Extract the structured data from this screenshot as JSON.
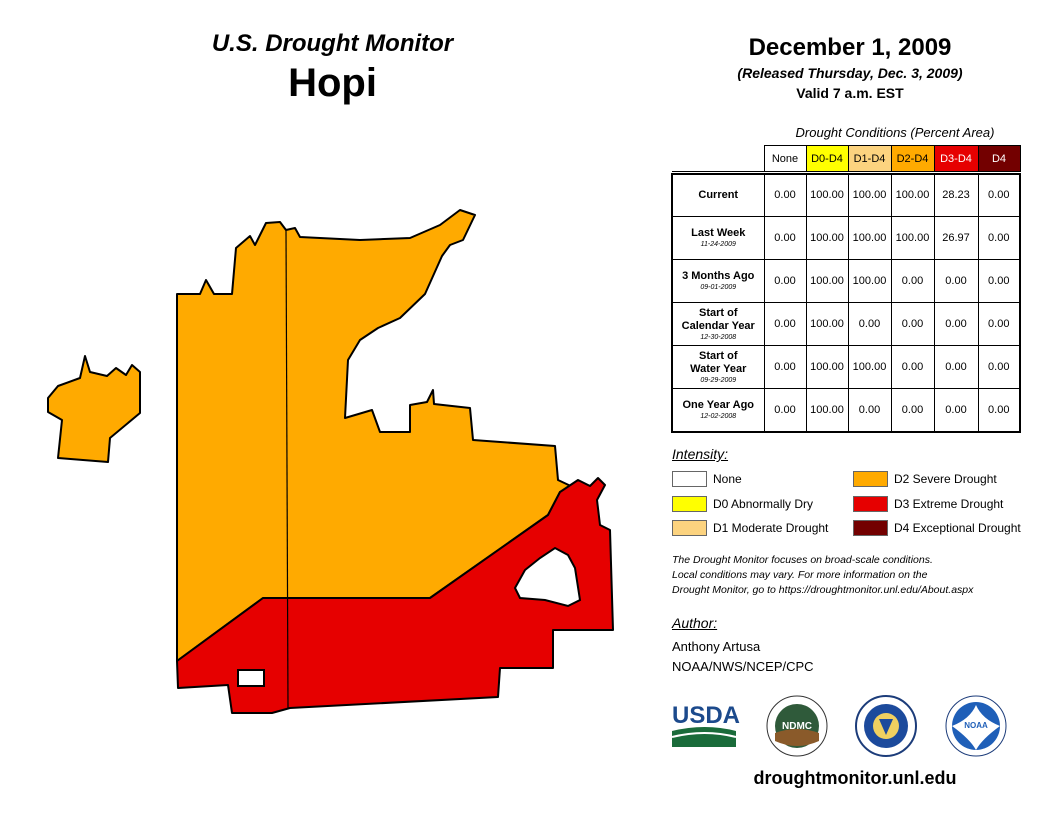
{
  "header": {
    "product": "U.S. Drought Monitor",
    "region": "Hopi",
    "date": "December 1, 2009",
    "released": "(Released Thursday, Dec. 3, 2009)",
    "valid": "Valid 7 a.m. EST"
  },
  "table": {
    "caption": "Drought Conditions (Percent Area)",
    "columns": [
      "None",
      "D0-D4",
      "D1-D4",
      "D2-D4",
      "D3-D4",
      "D4"
    ],
    "rows": [
      {
        "label": "Current",
        "label2": "",
        "date": "",
        "values": [
          "0.00",
          "100.00",
          "100.00",
          "100.00",
          "28.23",
          "0.00"
        ]
      },
      {
        "label": "Last Week",
        "label2": "",
        "date": "11-24-2009",
        "values": [
          "0.00",
          "100.00",
          "100.00",
          "100.00",
          "26.97",
          "0.00"
        ]
      },
      {
        "label": "3 Months Ago",
        "label2": "",
        "date": "09-01-2009",
        "values": [
          "0.00",
          "100.00",
          "100.00",
          "0.00",
          "0.00",
          "0.00"
        ]
      },
      {
        "label": "Start of",
        "label2": "Calendar Year",
        "date": "12-30-2008",
        "values": [
          "0.00",
          "100.00",
          "0.00",
          "0.00",
          "0.00",
          "0.00"
        ]
      },
      {
        "label": "Start of",
        "label2": "Water Year",
        "date": "09-29-2009",
        "values": [
          "0.00",
          "100.00",
          "100.00",
          "0.00",
          "0.00",
          "0.00"
        ]
      },
      {
        "label": "One Year Ago",
        "label2": "",
        "date": "12-02-2008",
        "values": [
          "0.00",
          "100.00",
          "0.00",
          "0.00",
          "0.00",
          "0.00"
        ]
      }
    ]
  },
  "legend": {
    "title": "Intensity:",
    "items": [
      {
        "label": "None",
        "color": "#ffffff"
      },
      {
        "label": "D0 Abnormally Dry",
        "color": "#ffff00"
      },
      {
        "label": "D1 Moderate Drought",
        "color": "#fcd37f"
      },
      {
        "label": "D2 Severe Drought",
        "color": "#ffaa00"
      },
      {
        "label": "D3 Extreme Drought",
        "color": "#e60000"
      },
      {
        "label": "D4 Exceptional Drought",
        "color": "#730000"
      }
    ]
  },
  "note": {
    "line1": "The Drought Monitor focuses on broad-scale conditions.",
    "line2": "Local conditions may vary. For more information on the",
    "line3": "Drought Monitor, go to https://droughtmonitor.unl.edu/About.aspx"
  },
  "author": {
    "title": "Author:",
    "name": "Anthony Artusa",
    "org": "NOAA/NWS/NCEP/CPC"
  },
  "logos": {
    "usda": "USDA",
    "ndmc": "NDMC",
    "noaa": "NOAA"
  },
  "map_colors": {
    "d2": "#ffaa00",
    "d3": "#e60000"
  },
  "footer": {
    "url": "droughtmonitor.unl.edu"
  }
}
